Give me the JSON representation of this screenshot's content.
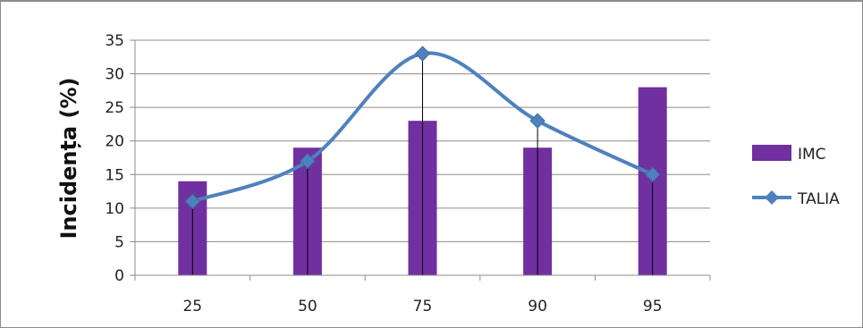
{
  "chart_data": {
    "type": "bar",
    "title": "",
    "xlabel": "",
    "ylabel": "Incidența (%)",
    "categories": [
      "25",
      "50",
      "75",
      "90",
      "95"
    ],
    "ylim": [
      0,
      35
    ],
    "yticks": [
      0,
      5,
      10,
      15,
      20,
      25,
      30,
      35
    ],
    "grid": true,
    "legend_position": "right",
    "series": [
      {
        "name": "IMC",
        "type": "bar",
        "color": "#7030a0",
        "values": [
          14,
          19,
          23,
          19,
          28
        ]
      },
      {
        "name": "TALIA",
        "type": "line",
        "smooth": true,
        "marker": "diamond",
        "color": "#4f81bd",
        "values": [
          11,
          17,
          33,
          23,
          15
        ]
      }
    ]
  }
}
